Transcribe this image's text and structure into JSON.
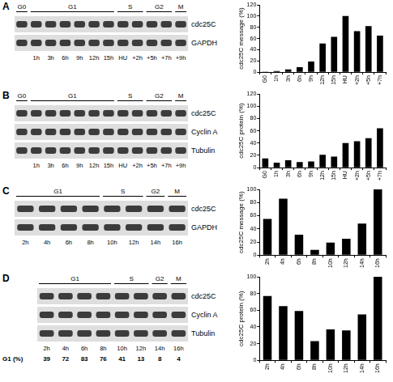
{
  "chart_data": [
    {
      "type": "bar",
      "y_label": "cdc25C message (%)",
      "categories": [
        "G0",
        "1h",
        "3h",
        "6h",
        "9h",
        "12h",
        "15h",
        "HU",
        "+2h",
        "+5h",
        "+7h"
      ],
      "values": [
        1,
        2,
        5,
        9,
        19,
        51,
        63,
        100,
        73,
        82,
        65
      ],
      "color": "#000000",
      "ylim": [
        0,
        120
      ],
      "yticks": [
        0,
        20,
        40,
        60,
        80,
        100,
        120
      ],
      "grid": false
    },
    {
      "type": "bar",
      "y_label": "cdc25C protein (%)",
      "categories": [
        "G0",
        "1h",
        "3h",
        "6h",
        "9h",
        "12h",
        "15h",
        "HU",
        "+2h",
        "+5h",
        "+7h"
      ],
      "values": [
        15,
        8,
        12,
        9,
        10,
        21,
        18,
        40,
        43,
        48,
        64
      ],
      "color": "#000000",
      "ylim": [
        0,
        120
      ],
      "yticks": [
        0,
        20,
        40,
        60,
        80,
        100,
        120
      ],
      "grid": false
    },
    {
      "type": "bar",
      "y_label": "cdc25C message (%)",
      "categories": [
        "2h",
        "4h",
        "6h",
        "8h",
        "10h",
        "12h",
        "14h",
        "16h"
      ],
      "values": [
        55,
        86,
        31,
        8,
        19,
        25,
        48,
        100
      ],
      "color": "#000000",
      "ylim": [
        0,
        100
      ],
      "yticks": [
        0,
        20,
        40,
        60,
        80,
        100
      ],
      "grid": false
    },
    {
      "type": "bar",
      "y_label": "cdc25C protein (%)",
      "categories": [
        "2h",
        "4h",
        "6h",
        "8h",
        "10h",
        "12h",
        "14h",
        "16h"
      ],
      "values": [
        77,
        65,
        59,
        23,
        37,
        36,
        55,
        100
      ],
      "color": "#000000",
      "ylim": [
        0,
        100
      ],
      "yticks": [
        0,
        20,
        40,
        60,
        80,
        100
      ],
      "grid": false
    }
  ],
  "blots": [
    {
      "letter": "A",
      "groups": [
        {
          "label": "G0",
          "span": 1
        },
        {
          "label": "G1",
          "span": 6
        },
        {
          "label": "S",
          "span": 2
        },
        {
          "label": "G2",
          "span": 2
        },
        {
          "label": "M",
          "span": 1
        }
      ],
      "lanes": [
        null,
        "1h",
        "3h",
        "6h",
        "9h",
        "12h",
        "15h",
        "HU",
        "+2h",
        "+5h",
        "+7h",
        "+9h"
      ],
      "rows": [
        "cdc25C",
        "GAPDH"
      ]
    },
    {
      "letter": "B",
      "groups": [
        {
          "label": "G0",
          "span": 1
        },
        {
          "label": "G1",
          "span": 6
        },
        {
          "label": "S",
          "span": 2
        },
        {
          "label": "G2",
          "span": 2
        },
        {
          "label": "M",
          "span": 1
        }
      ],
      "lanes": [
        null,
        "1h",
        "3h",
        "6h",
        "9h",
        "12h",
        "15h",
        "HU",
        "+2h",
        "+5h",
        "+7h",
        "+9h"
      ],
      "rows": [
        "cdc25C",
        "Cyclin A",
        "Tubulin"
      ]
    },
    {
      "letter": "C",
      "groups": [
        {
          "label": "G1",
          "span": 4
        },
        {
          "label": "S",
          "span": 2
        },
        {
          "label": "G2",
          "span": 1
        },
        {
          "label": "M",
          "span": 1
        }
      ],
      "lanes": [
        "2h",
        "4h",
        "6h",
        "8h",
        "10h",
        "12h",
        "14h",
        "16h"
      ],
      "rows": [
        "cdc25C",
        "GAPDH"
      ]
    },
    {
      "letter": "D",
      "groups": [
        {
          "label": "G1",
          "span": 4
        },
        {
          "label": "S",
          "span": 2
        },
        {
          "label": "G2",
          "span": 1
        },
        {
          "label": "M",
          "span": 1
        }
      ],
      "lanes": [
        "2h",
        "4h",
        "6h",
        "8h",
        "10h",
        "12h",
        "14h",
        "16h"
      ],
      "rows": [
        "cdc25C",
        "Cyclin A",
        "Tubulin"
      ],
      "g1_row": {
        "label": "G1 (%)",
        "values": [
          39,
          72,
          83,
          76,
          41,
          13,
          8,
          4
        ]
      }
    }
  ]
}
